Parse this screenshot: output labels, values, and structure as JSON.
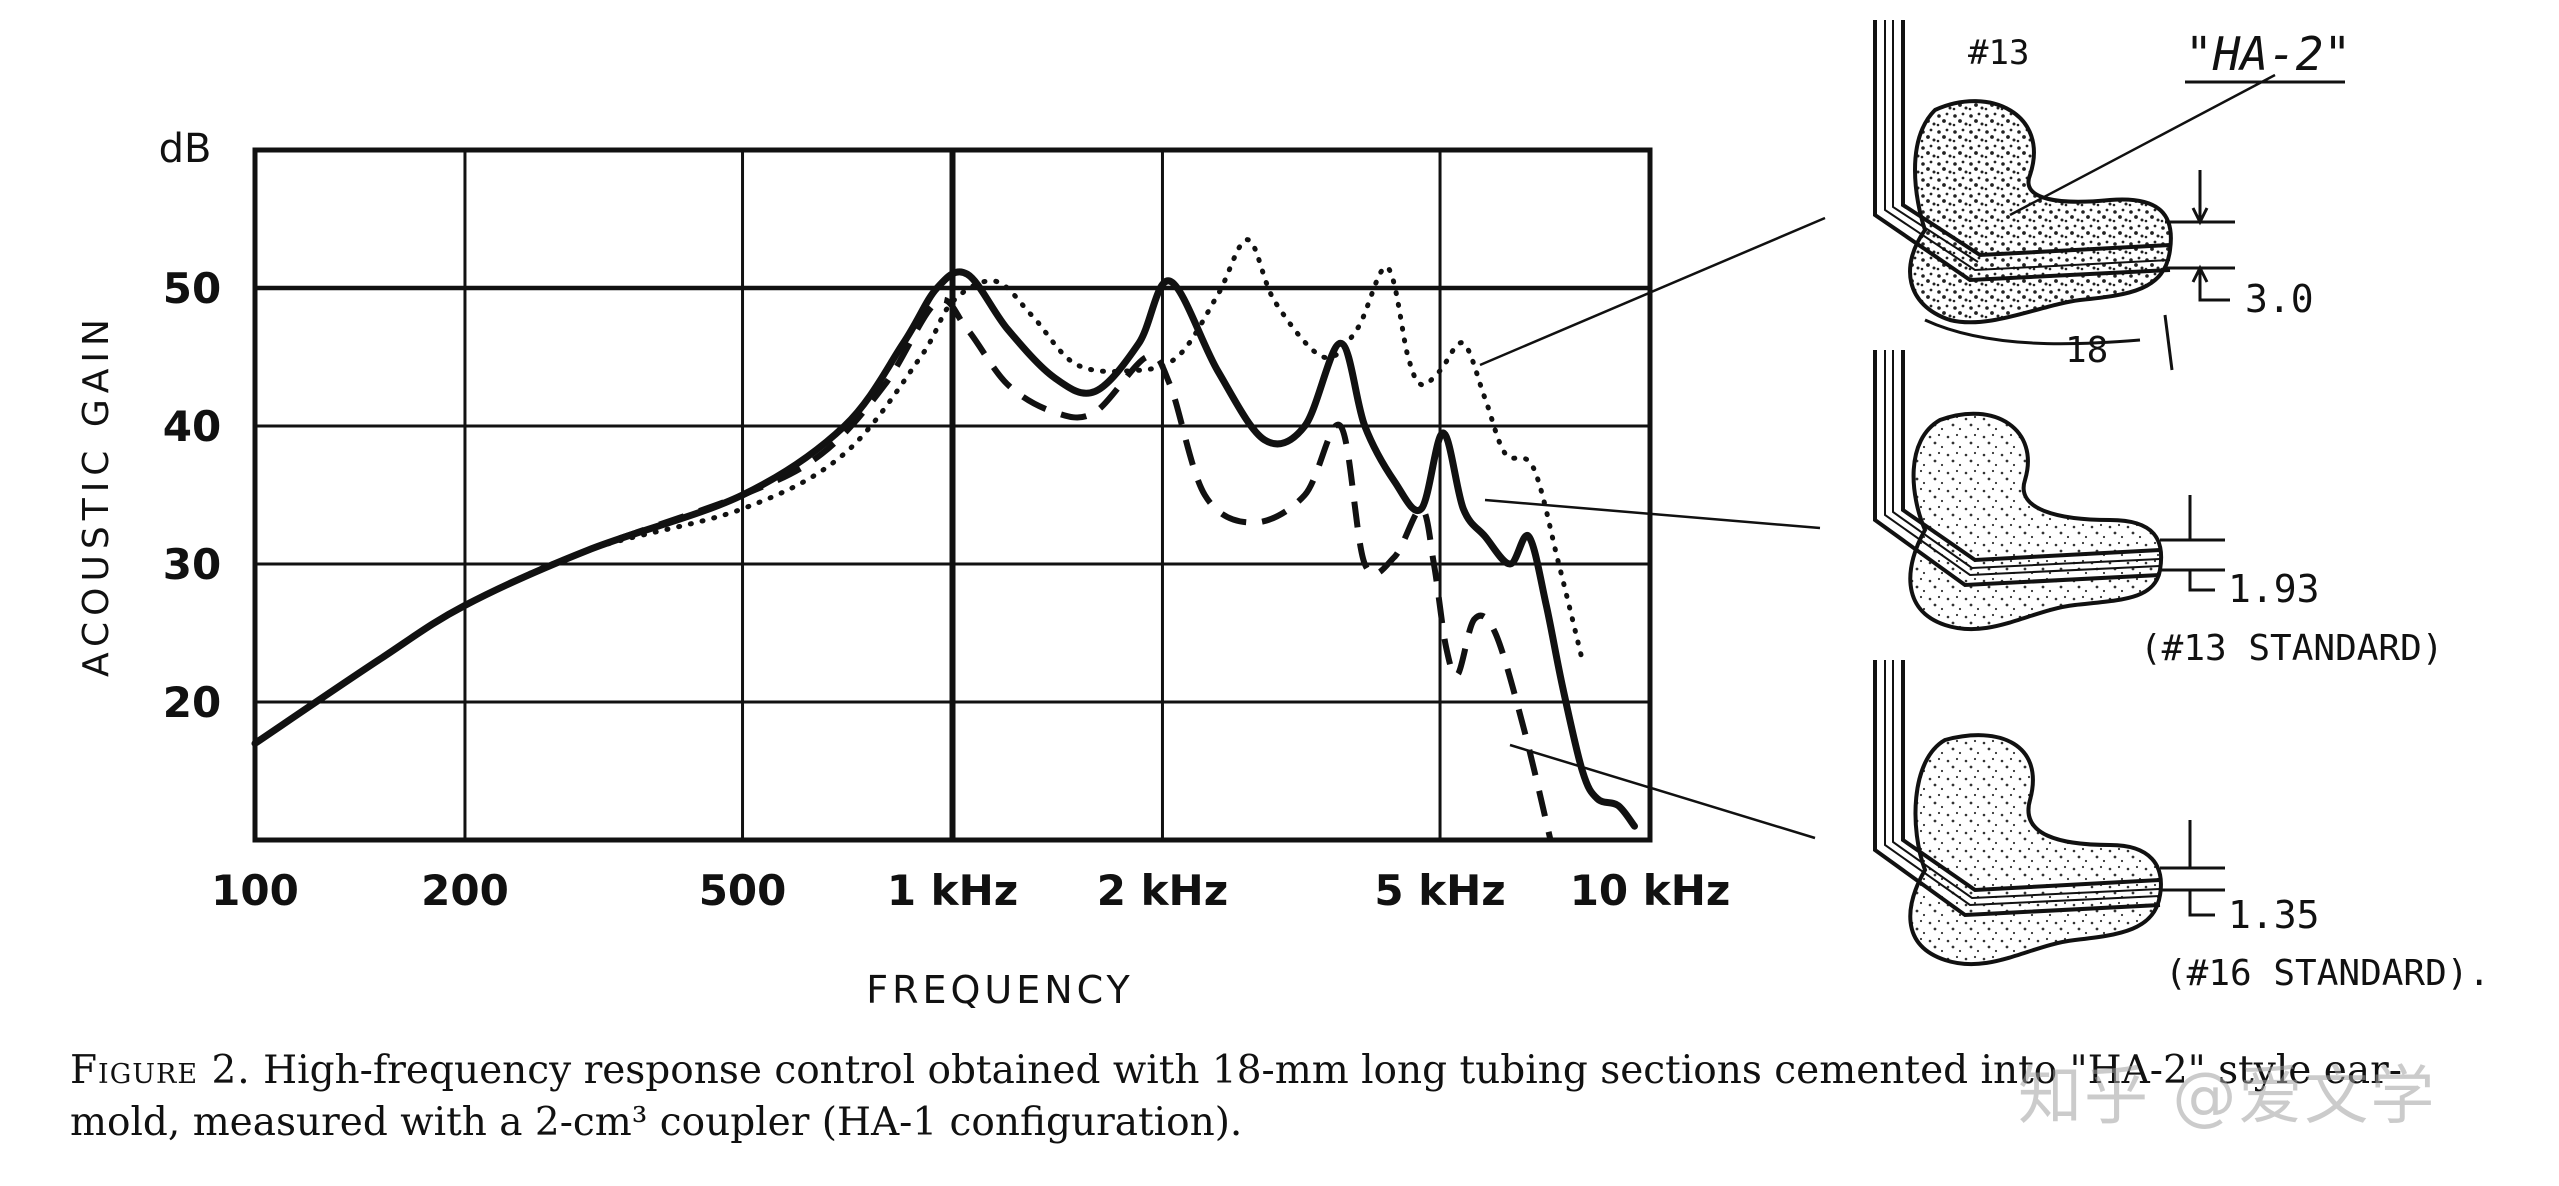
{
  "chart_data": {
    "type": "line",
    "xscale": "log",
    "xlabel": "FREQUENCY",
    "ylabel": "ACOUSTIC GAIN",
    "yunit": "dB",
    "xlim": [
      100,
      10000
    ],
    "ylim": [
      10,
      60
    ],
    "grid": true,
    "x_ticks": [
      {
        "value": 100,
        "label": "100"
      },
      {
        "value": 200,
        "label": "200"
      },
      {
        "value": 500,
        "label": "500"
      },
      {
        "value": 1000,
        "label": "1 kHz"
      },
      {
        "value": 2000,
        "label": "2 kHz"
      },
      {
        "value": 5000,
        "label": "5 kHz"
      },
      {
        "value": 10000,
        "label": "10 kHz"
      }
    ],
    "y_ticks": [
      {
        "value": 20,
        "label": "20"
      },
      {
        "value": 30,
        "label": "30"
      },
      {
        "value": 40,
        "label": "40"
      },
      {
        "value": 50,
        "label": "50"
      }
    ],
    "series": [
      {
        "name": "#16 STANDARD",
        "style": "dashed",
        "x": [
          100,
          150,
          200,
          300,
          500,
          650,
          800,
          950,
          1050,
          1200,
          1400,
          1600,
          1900,
          2050,
          2300,
          2700,
          3200,
          3600,
          3900,
          4300,
          4700,
          4900,
          5100,
          5300,
          5600,
          6000,
          6600,
          7200
        ],
        "y": [
          17,
          23,
          27,
          31,
          35,
          38,
          43,
          49,
          47,
          43,
          41,
          41,
          45,
          43,
          35,
          33,
          35,
          40,
          30,
          30.5,
          34,
          30,
          24,
          22,
          26,
          25,
          18,
          10
        ]
      },
      {
        "name": "#13 STANDARD",
        "style": "solid",
        "x": [
          100,
          150,
          200,
          300,
          500,
          700,
          850,
          950,
          1050,
          1200,
          1400,
          1600,
          1850,
          2050,
          2400,
          2800,
          3200,
          3600,
          3900,
          4300,
          4700,
          5050,
          5400,
          5800,
          6300,
          6700,
          7100,
          7500,
          8000,
          8400,
          9000,
          9500
        ],
        "y": [
          17,
          23,
          27,
          31,
          35,
          40,
          46,
          50,
          51,
          47,
          43.5,
          42.5,
          46,
          50.5,
          44,
          39,
          40,
          46,
          40,
          36,
          34,
          39.5,
          34,
          32,
          30,
          32,
          27,
          21,
          15,
          13,
          12.5,
          11
        ]
      },
      {
        "name": "HA-2",
        "style": "dotted",
        "x": [
          100,
          150,
          200,
          300,
          500,
          700,
          900,
          1000,
          1150,
          1300,
          1500,
          1800,
          2100,
          2400,
          2650,
          2900,
          3400,
          3800,
          4200,
          4500,
          4700,
          5000,
          5400,
          5800,
          6200,
          6800,
          7400,
          8000
        ],
        "y": [
          17,
          23,
          27,
          31,
          34,
          38,
          45,
          49,
          50.5,
          48,
          44.5,
          44,
          45,
          49.5,
          53.5,
          49,
          45,
          47,
          51.5,
          45,
          43,
          44,
          46,
          42,
          38,
          37,
          30,
          23
        ]
      }
    ],
    "annotations": {
      "ha2_label": "\"HA-2\"",
      "num13_label": "#13",
      "length_dim": "18",
      "dim_top": "3.0",
      "dim_mid": "1.93",
      "dim_mid_note": "(#13 STANDARD)",
      "dim_bot": "1.35",
      "dim_bot_note": "(#16 STANDARD)."
    }
  },
  "caption": {
    "lead": "Figure 2.",
    "text": "High-frequency response control obtained with 18-mm long tubing sections cemented into \"HA-2\" style ear-mold, measured with a 2-cm³ coupler (HA-1 configuration)."
  },
  "watermark": "知乎 @爱文学"
}
